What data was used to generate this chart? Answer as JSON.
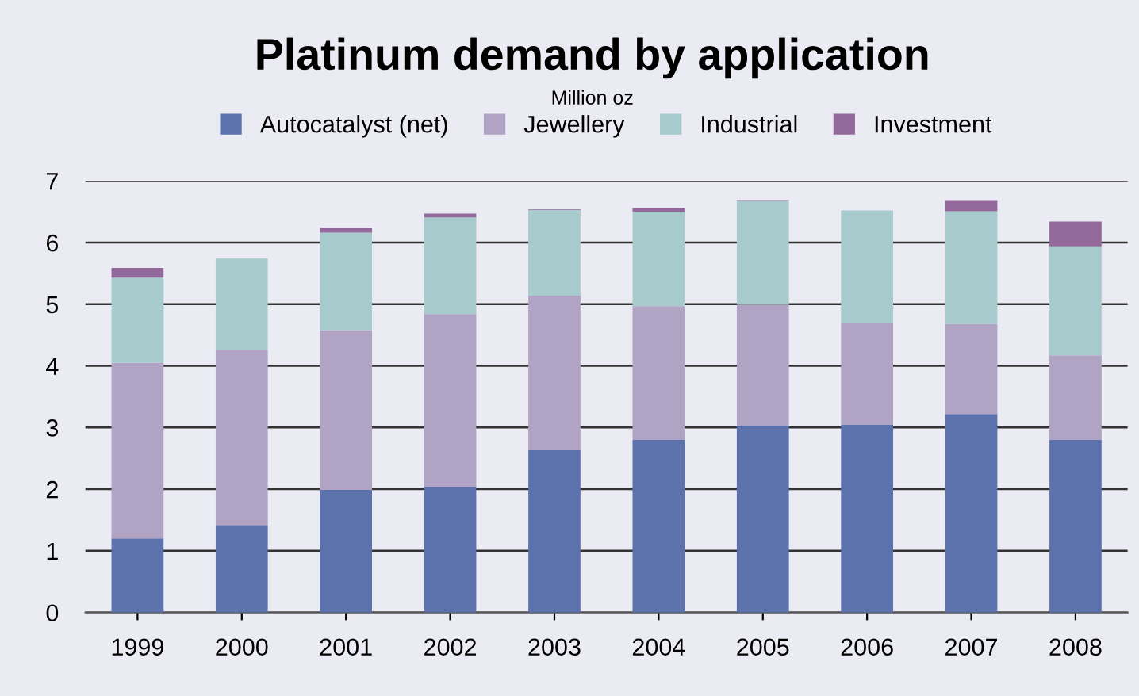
{
  "chart_data": {
    "type": "bar",
    "title": "Platinum demand by application",
    "subtitle": "Million oz",
    "categories": [
      "1999",
      "2000",
      "2001",
      "2002",
      "2003",
      "2004",
      "2005",
      "2006",
      "2007",
      "2008"
    ],
    "stacked": true,
    "series": [
      {
        "name": "Autocatalyst (net)",
        "color": "#5b72ad",
        "values": [
          1.2,
          1.42,
          1.99,
          2.04,
          2.63,
          2.8,
          3.03,
          3.05,
          3.22,
          2.8
        ]
      },
      {
        "name": "Jewellery",
        "color": "#b1a3c4",
        "values": [
          2.85,
          2.84,
          2.59,
          2.8,
          2.51,
          2.17,
          1.96,
          1.64,
          1.46,
          1.37
        ]
      },
      {
        "name": "Industrial",
        "color": "#a7cacc",
        "values": [
          1.38,
          1.48,
          1.58,
          1.57,
          1.39,
          1.53,
          1.69,
          1.83,
          1.83,
          1.77
        ]
      },
      {
        "name": "Investment",
        "color": "#93689a",
        "values": [
          0.16,
          0,
          0.08,
          0.06,
          0.01,
          0.06,
          0.01,
          0,
          0.18,
          0.4
        ]
      }
    ],
    "ylim": [
      0,
      7
    ],
    "yticks": [
      0,
      1,
      2,
      3,
      4,
      5,
      6,
      7
    ],
    "grid": "y",
    "legend": "top"
  }
}
